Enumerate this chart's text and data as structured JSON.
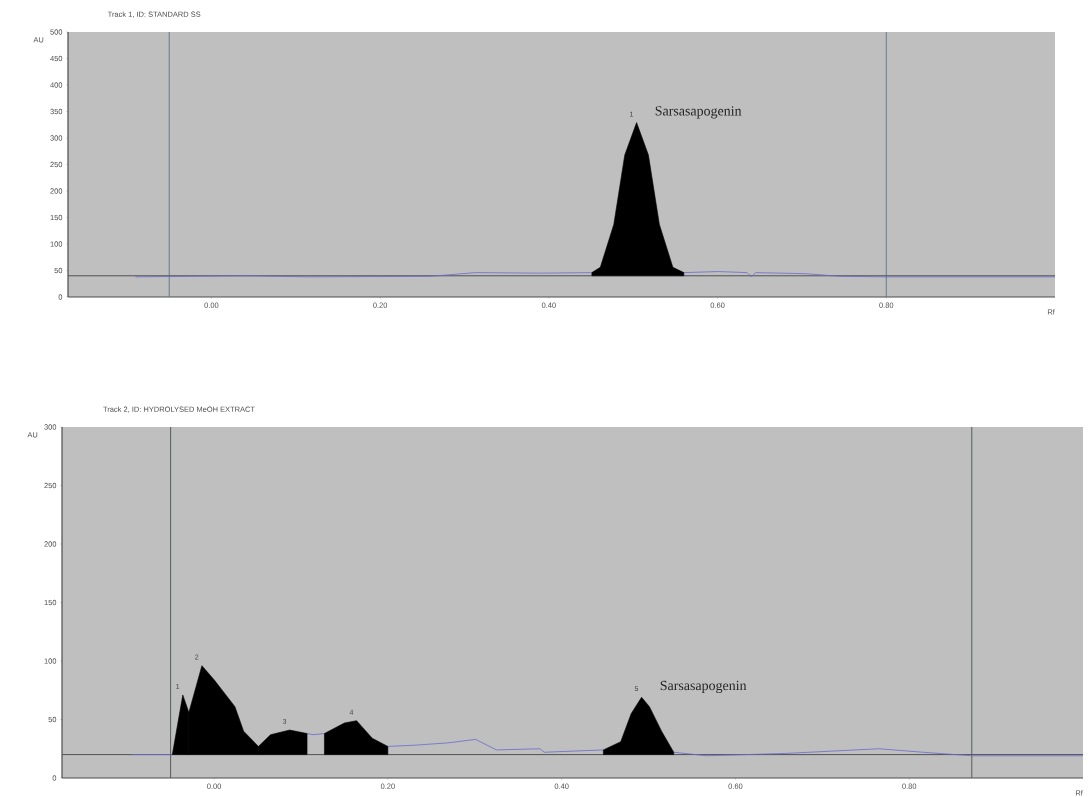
{
  "chart_data": [
    {
      "type": "line",
      "title": "Track 1, ID: STANDARD SS",
      "xlabel": "Rf",
      "ylabel": "AU",
      "xlim": [
        -0.17,
        1.0
      ],
      "ylim": [
        0,
        500
      ],
      "xticks": [
        {
          "value": 0,
          "label": "0.00"
        },
        {
          "value": 0.2,
          "label": "0.20"
        },
        {
          "value": 0.4,
          "label": "0.40"
        },
        {
          "value": 0.6,
          "label": "0.60"
        },
        {
          "value": 0.8,
          "label": "0.80"
        }
      ],
      "yticks": [
        0,
        50,
        100,
        150,
        200,
        250,
        300,
        350,
        400,
        450,
        500
      ],
      "series": [
        {
          "color": "#6a6ad0",
          "x": [
            -0.09,
            0.041,
            0.116,
            0.259,
            0.313,
            0.39,
            0.451,
            0.5,
            0.56,
            0.601,
            0.635,
            0.64,
            0.645,
            0.704,
            0.745,
            0.8,
            1.0
          ],
          "values": [
            38,
            40,
            38,
            39,
            46,
            45,
            46,
            null,
            46,
            48,
            46,
            38,
            46,
            44,
            39,
            38,
            38
          ]
        },
        {
          "type": "area",
          "color": "#000000",
          "x": [
            0.451,
            0.451,
            0.461,
            0.477,
            0.49,
            0.504,
            0.518,
            0.531,
            0.547,
            0.56,
            0.56
          ],
          "values": [
            40,
            46,
            56,
            137,
            268,
            329,
            268,
            137,
            56,
            46,
            40
          ]
        }
      ],
      "ref_lines": [
        {
          "axis": "x",
          "value": -0.05,
          "color": "#5f8088"
        },
        {
          "axis": "x",
          "value": 0.8,
          "color": "#5f8088"
        },
        {
          "axis": "y",
          "value": 40,
          "color": "#505050"
        }
      ],
      "annotations": [
        {
          "text": "Sarsasapogenin",
          "x": 0.504,
          "y": 329
        },
        {
          "text": "1",
          "x": 0.504,
          "y": 329
        }
      ]
    },
    {
      "type": "line",
      "title": "Track 2, ID: HYDROLYSED MeOH EXTRACT",
      "xlabel": "Rf",
      "ylabel": "AU",
      "xlim": [
        -0.175,
        1.0
      ],
      "ylim": [
        0,
        300
      ],
      "xticks": [
        {
          "value": 0,
          "label": "0.00"
        },
        {
          "value": 0.2,
          "label": "0.20"
        },
        {
          "value": 0.4,
          "label": "0.40"
        },
        {
          "value": 0.6,
          "label": "0.60"
        },
        {
          "value": 0.8,
          "label": "0.80"
        }
      ],
      "yticks": [
        0,
        50,
        100,
        150,
        200,
        250,
        300
      ],
      "series": [
        {
          "color": "#6a6ad0",
          "x": [
            -0.095,
            -0.048,
            0.0,
            0.107,
            0.114,
            0.127,
            0.16,
            0.2,
            0.23,
            0.269,
            0.301,
            0.325,
            0.375,
            0.38,
            0.448,
            0.49,
            0.529,
            0.567,
            0.658,
            0.765,
            0.816,
            0.872,
            1.0
          ],
          "values": [
            20,
            20,
            null,
            38,
            37,
            38,
            null,
            27,
            28,
            30,
            33,
            24,
            25,
            22,
            24,
            null,
            22,
            19,
            21,
            25,
            22,
            19,
            19
          ]
        },
        {
          "type": "area",
          "color": "#000000",
          "x": [
            -0.048,
            -0.036,
            -0.029,
            -0.029
          ],
          "values": [
            20,
            71,
            56,
            20
          ]
        },
        {
          "type": "area",
          "color": "#000000",
          "x": [
            -0.029,
            -0.029,
            -0.014,
            0.0,
            0.024,
            0.034,
            0.051,
            0.051
          ],
          "values": [
            20,
            56,
            96,
            84,
            61,
            40,
            27,
            20
          ]
        },
        {
          "type": "area",
          "color": "#000000",
          "x": [
            0.051,
            0.051,
            0.065,
            0.087,
            0.107,
            0.107
          ],
          "values": [
            20,
            27,
            37,
            41,
            38,
            20
          ]
        },
        {
          "type": "area",
          "color": "#000000",
          "x": [
            0.127,
            0.127,
            0.15,
            0.164,
            0.182,
            0.2,
            0.2
          ],
          "values": [
            20,
            38,
            47,
            49,
            34,
            27,
            20
          ]
        },
        {
          "type": "area",
          "color": "#000000",
          "x": [
            0.448,
            0.448,
            0.468,
            0.48,
            0.492,
            0.501,
            0.515,
            0.529,
            0.529
          ],
          "values": [
            20,
            24,
            31,
            55,
            69,
            61,
            40,
            22,
            20
          ]
        }
      ],
      "ref_lines": [
        {
          "axis": "x",
          "value": -0.05,
          "color": "#555b5e"
        },
        {
          "axis": "x",
          "value": 0.872,
          "color": "#555b5e"
        },
        {
          "axis": "y",
          "value": 20,
          "color": "#505050"
        }
      ],
      "annotations": [
        {
          "text": "Sarsasapogenin",
          "x": 0.492,
          "y": 69
        },
        {
          "text": "1",
          "x": -0.036,
          "y": 71
        },
        {
          "text": "2",
          "x": -0.014,
          "y": 96
        },
        {
          "text": "3",
          "x": 0.087,
          "y": 41
        },
        {
          "text": "4",
          "x": 0.164,
          "y": 49
        },
        {
          "text": "5",
          "x": 0.492,
          "y": 69
        }
      ]
    }
  ]
}
